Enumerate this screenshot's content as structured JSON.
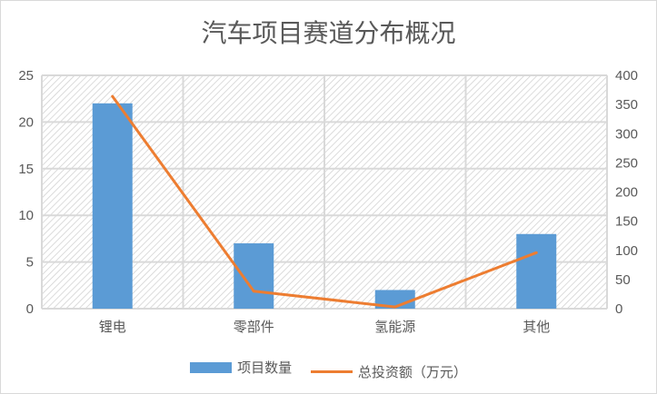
{
  "chart_data": {
    "type": "bar+line",
    "title": "汽车项目赛道分布概况",
    "categories": [
      "锂电",
      "零部件",
      "氢能源",
      "其他"
    ],
    "series": [
      {
        "name": "项目数量",
        "type": "bar",
        "axis": "left",
        "values": [
          22,
          7,
          2,
          8
        ],
        "color": "#5b9bd5"
      },
      {
        "name": "总投资额（万元）",
        "type": "line",
        "axis": "right",
        "values": [
          364,
          30,
          3,
          96
        ],
        "color": "#ed7d31"
      }
    ],
    "ylim_left": [
      0,
      25
    ],
    "yticks_left": [
      "0",
      "5",
      "10",
      "15",
      "20",
      "25"
    ],
    "ylim_right": [
      0,
      400
    ],
    "yticks_right": [
      "0",
      "50",
      "100",
      "150",
      "200",
      "250",
      "300",
      "350",
      "400"
    ],
    "grid": true,
    "legend": "bottom"
  }
}
